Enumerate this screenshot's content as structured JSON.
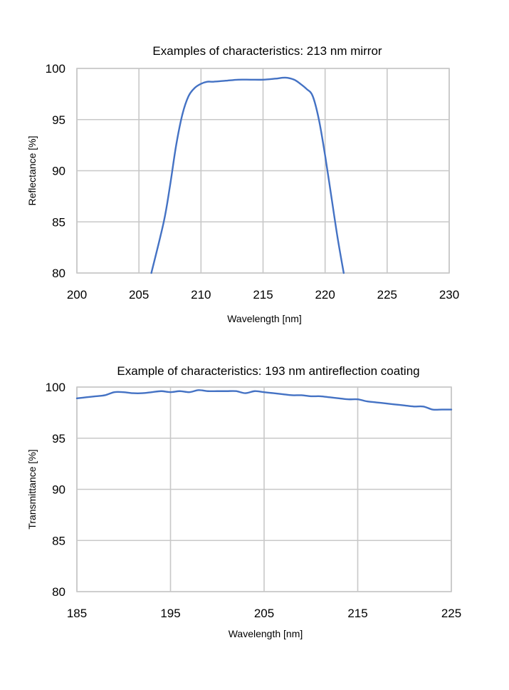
{
  "chart_data": [
    {
      "type": "line",
      "title": "Examples of characteristics: 213 nm mirror",
      "xlabel": "Wavelength [nm]",
      "ylabel": "Reflectance [%]",
      "xlim": [
        200,
        230
      ],
      "ylim": [
        80,
        100
      ],
      "xticks": [
        200,
        205,
        210,
        215,
        220,
        225,
        230
      ],
      "yticks": [
        80,
        85,
        90,
        95,
        100
      ],
      "grid": true,
      "color": "#4472C4",
      "series": [
        {
          "x": [
            206.0,
            207.0,
            207.5,
            208.0,
            208.5,
            209.0,
            209.5,
            210.0,
            210.5,
            211.0,
            212.0,
            213.0,
            214.0,
            215.0,
            216.0,
            216.8,
            217.5,
            218.0,
            218.5,
            219.0,
            219.5,
            220.0,
            220.5,
            221.0,
            221.5
          ],
          "y": [
            80.0,
            85.0,
            88.5,
            92.5,
            95.5,
            97.3,
            98.1,
            98.5,
            98.7,
            98.7,
            98.8,
            98.9,
            98.9,
            98.9,
            99.0,
            99.1,
            98.9,
            98.5,
            98.0,
            97.3,
            95.0,
            91.5,
            87.5,
            83.5,
            80.0
          ]
        }
      ]
    },
    {
      "type": "line",
      "title": "Example of characteristics: 193 nm antireflection coating",
      "xlabel": "Wavelength [nm]",
      "ylabel": "Transmittance [%]",
      "xlim": [
        185,
        225
      ],
      "ylim": [
        80,
        100
      ],
      "xticks": [
        185,
        195,
        205,
        215,
        225
      ],
      "yticks": [
        80,
        85,
        90,
        95,
        100
      ],
      "grid": true,
      "color": "#4472C4",
      "series": [
        {
          "x": [
            185,
            186,
            187,
            188,
            189,
            190,
            191,
            192,
            193,
            194,
            195,
            196,
            197,
            198,
            199,
            200,
            201,
            202,
            203,
            204,
            205,
            206,
            207,
            208,
            209,
            210,
            211,
            212,
            213,
            214,
            215,
            216,
            217,
            218,
            219,
            220,
            221,
            222,
            223,
            224,
            225
          ],
          "y": [
            98.9,
            99.0,
            99.1,
            99.2,
            99.5,
            99.5,
            99.4,
            99.4,
            99.5,
            99.6,
            99.5,
            99.6,
            99.5,
            99.7,
            99.6,
            99.6,
            99.6,
            99.6,
            99.4,
            99.6,
            99.5,
            99.4,
            99.3,
            99.2,
            99.2,
            99.1,
            99.1,
            99.0,
            98.9,
            98.8,
            98.8,
            98.6,
            98.5,
            98.4,
            98.3,
            98.2,
            98.1,
            98.1,
            97.8,
            97.8,
            97.8
          ]
        }
      ]
    }
  ]
}
